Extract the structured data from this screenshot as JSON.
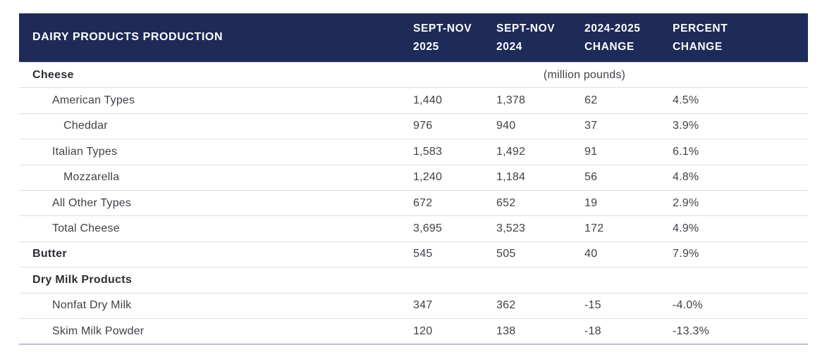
{
  "table": {
    "title": "DAIRY PRODUCTS PRODUCTION",
    "unit_note": "(million pounds)",
    "header_bg": "#1e2a58",
    "header_text_color": "#ffffff",
    "columns": [
      {
        "line1": "SEPT-NOV",
        "line2": "2025"
      },
      {
        "line1": "SEPT-NOV",
        "line2": "2024"
      },
      {
        "line1": "2024-2025",
        "line2": "CHANGE"
      },
      {
        "line1": "PERCENT",
        "line2": "CHANGE"
      }
    ],
    "rows": [
      {
        "label": "Cheese",
        "v2025": "",
        "v2024": "",
        "change": "",
        "pct": ""
      },
      {
        "label": "American Types",
        "v2025": "1,440",
        "v2024": "1,378",
        "change": "62",
        "pct": "4.5%"
      },
      {
        "label": "Cheddar",
        "v2025": "976",
        "v2024": "940",
        "change": "37",
        "pct": "3.9%"
      },
      {
        "label": "Italian Types",
        "v2025": "1,583",
        "v2024": "1,492",
        "change": "91",
        "pct": "6.1%"
      },
      {
        "label": "Mozzarella",
        "v2025": "1,240",
        "v2024": "1,184",
        "change": "56",
        "pct": "4.8%"
      },
      {
        "label": "All Other Types",
        "v2025": "672",
        "v2024": "652",
        "change": "19",
        "pct": "2.9%"
      },
      {
        "label": "Total Cheese",
        "v2025": "3,695",
        "v2024": "3,523",
        "change": "172",
        "pct": "4.9%"
      },
      {
        "label": "Butter",
        "v2025": "545",
        "v2024": "505",
        "change": "40",
        "pct": "7.9%"
      },
      {
        "label": "Dry Milk Products",
        "v2025": "",
        "v2024": "",
        "change": "",
        "pct": ""
      },
      {
        "label": "Nonfat Dry Milk",
        "v2025": "347",
        "v2024": "362",
        "change": "-15",
        "pct": "-4.0%"
      },
      {
        "label": "Skim Milk Powder",
        "v2025": "120",
        "v2024": "138",
        "change": "-18",
        "pct": "-13.3%"
      }
    ]
  },
  "chart_data": {
    "type": "table",
    "title": "DAIRY PRODUCTS PRODUCTION",
    "unit": "million pounds",
    "columns": [
      "Product",
      "Sept-Nov 2025",
      "Sept-Nov 2024",
      "2024-2025 Change",
      "Percent Change"
    ],
    "rows": [
      [
        "Cheese",
        null,
        null,
        null,
        null
      ],
      [
        "American Types",
        1440,
        1378,
        62,
        "4.5%"
      ],
      [
        "Cheddar",
        976,
        940,
        37,
        "3.9%"
      ],
      [
        "Italian Types",
        1583,
        1492,
        91,
        "6.1%"
      ],
      [
        "Mozzarella",
        1240,
        1184,
        56,
        "4.8%"
      ],
      [
        "All Other Types",
        672,
        652,
        19,
        "2.9%"
      ],
      [
        "Total Cheese",
        3695,
        3523,
        172,
        "4.9%"
      ],
      [
        "Butter",
        545,
        505,
        40,
        "7.9%"
      ],
      [
        "Dry Milk Products",
        null,
        null,
        null,
        null
      ],
      [
        "Nonfat Dry Milk",
        347,
        362,
        -15,
        "-4.0%"
      ],
      [
        "Skim Milk Powder",
        120,
        138,
        -18,
        "-13.3%"
      ]
    ]
  }
}
